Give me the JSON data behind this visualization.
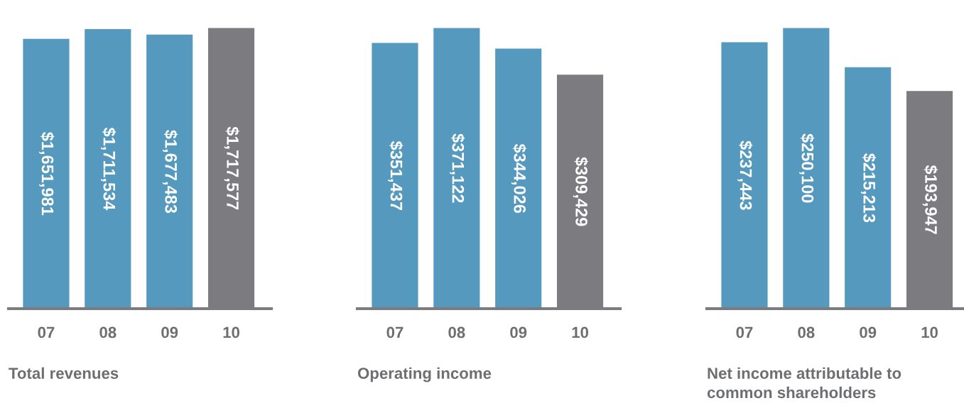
{
  "chart_data": [
    {
      "type": "bar",
      "title": "Total revenues",
      "categories": [
        "07",
        "08",
        "09",
        "10"
      ],
      "values": [
        1651981,
        1711534,
        1677483,
        1717577
      ],
      "value_labels": [
        "$1,651,981",
        "$1,711,534",
        "$1,677,483",
        "$1,717,577"
      ],
      "colors": [
        "#5599bf",
        "#5599bf",
        "#5599bf",
        "#7b7b80"
      ],
      "tick_labels": "x",
      "grid": false,
      "legend": false
    },
    {
      "type": "bar",
      "title": "Operating income",
      "categories": [
        "07",
        "08",
        "09",
        "10"
      ],
      "values": [
        351437,
        371122,
        344026,
        309429
      ],
      "value_labels": [
        "$351,437",
        "$371,122",
        "$344,026",
        "$309,429"
      ],
      "colors": [
        "#5599bf",
        "#5599bf",
        "#5599bf",
        "#7b7b80"
      ],
      "tick_labels": "x",
      "grid": false,
      "legend": false
    },
    {
      "type": "bar",
      "title": "Net income attributable to\ncommon shareholders",
      "categories": [
        "07",
        "08",
        "09",
        "10"
      ],
      "values": [
        237443,
        250100,
        215213,
        193947
      ],
      "value_labels": [
        "$237,443",
        "$250,100",
        "$215,213",
        "$193,947"
      ],
      "colors": [
        "#5599bf",
        "#5599bf",
        "#5599bf",
        "#7b7b80"
      ],
      "tick_labels": "x",
      "grid": false,
      "legend": false
    }
  ]
}
